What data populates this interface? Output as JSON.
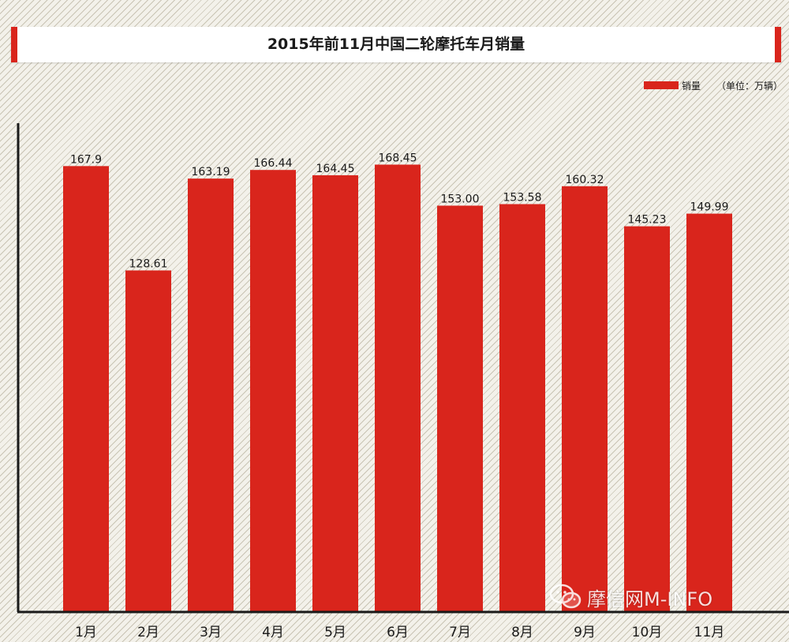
{
  "chart_data": {
    "type": "bar",
    "title": "2015年前11月中国二轮摩托车月销量",
    "categories": [
      "1月",
      "2月",
      "3月",
      "4月",
      "5月",
      "6月",
      "7月",
      "8月",
      "9月",
      "10月",
      "11月"
    ],
    "series": [
      {
        "name": "销量",
        "values": [
          167.9,
          128.61,
          163.19,
          166.44,
          164.45,
          168.45,
          153.0,
          153.58,
          160.32,
          145.23,
          149.99
        ],
        "labels": [
          "167.9",
          "128.61",
          "163.19",
          "166.44",
          "164.45",
          "168.45",
          "153.00",
          "153.58",
          "160.32",
          "145.23",
          "149.99"
        ]
      }
    ],
    "unit_note": "（单位：万辆）",
    "ylim": [
      0,
      190
    ],
    "grid": false,
    "legend_position": "top-right",
    "bar_color": "#d9251c"
  },
  "watermark": {
    "text": "摩信网M-INFO",
    "icon": "wechat-icon"
  }
}
